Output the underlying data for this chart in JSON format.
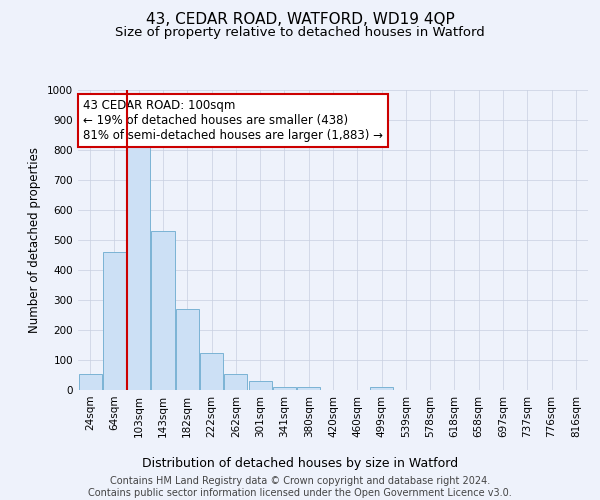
{
  "title": "43, CEDAR ROAD, WATFORD, WD19 4QP",
  "subtitle": "Size of property relative to detached houses in Watford",
  "xlabel": "Distribution of detached houses by size in Watford",
  "ylabel": "Number of detached properties",
  "categories": [
    "24sqm",
    "64sqm",
    "103sqm",
    "143sqm",
    "182sqm",
    "222sqm",
    "262sqm",
    "301sqm",
    "341sqm",
    "380sqm",
    "420sqm",
    "460sqm",
    "499sqm",
    "539sqm",
    "578sqm",
    "618sqm",
    "658sqm",
    "697sqm",
    "737sqm",
    "776sqm",
    "816sqm"
  ],
  "values": [
    55,
    460,
    810,
    530,
    270,
    125,
    55,
    30,
    10,
    10,
    0,
    0,
    10,
    0,
    0,
    0,
    0,
    0,
    0,
    0,
    0
  ],
  "bar_color": "#cce0f5",
  "bar_edge_color": "#7ab3d4",
  "property_line_x": 1.5,
  "property_line_color": "#cc0000",
  "ylim": [
    0,
    1000
  ],
  "yticks": [
    0,
    100,
    200,
    300,
    400,
    500,
    600,
    700,
    800,
    900,
    1000
  ],
  "annotation_text": "43 CEDAR ROAD: 100sqm\n← 19% of detached houses are smaller (438)\n81% of semi-detached houses are larger (1,883) →",
  "annotation_box_color": "#ffffff",
  "annotation_box_edge_color": "#cc0000",
  "footnote": "Contains HM Land Registry data © Crown copyright and database right 2024.\nContains public sector information licensed under the Open Government Licence v3.0.",
  "background_color": "#eef2fb",
  "grid_color": "#c8cfe0",
  "title_fontsize": 11,
  "subtitle_fontsize": 9.5,
  "xlabel_fontsize": 9,
  "ylabel_fontsize": 8.5,
  "tick_fontsize": 7.5,
  "annotation_fontsize": 8.5,
  "footnote_fontsize": 7
}
